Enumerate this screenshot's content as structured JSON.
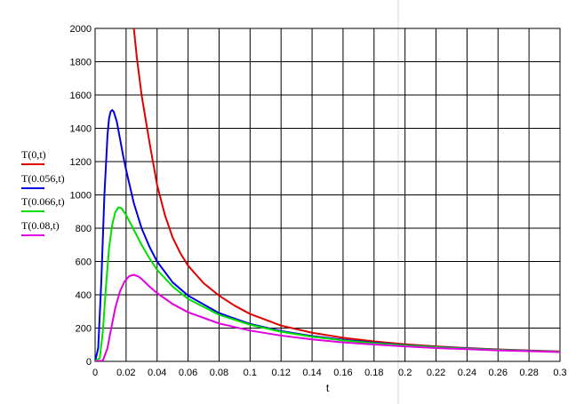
{
  "chart_data": {
    "type": "line",
    "xlabel": "t",
    "ylabel": "",
    "xlim": [
      0,
      0.3
    ],
    "ylim": [
      0,
      2000
    ],
    "xticks": [
      "0",
      "0.02",
      "0.04",
      "0.06",
      "0.08",
      "0.1",
      "0.12",
      "0.14",
      "0.16",
      "0.18",
      "0.2",
      "0.22",
      "0.24",
      "0.26",
      "0.28",
      "0.3"
    ],
    "yticks": [
      "0",
      "200",
      "400",
      "600",
      "800",
      "1000",
      "1200",
      "1400",
      "1600",
      "1800",
      "2000"
    ],
    "grid": true,
    "legend_position": "left",
    "series": [
      {
        "name": "T(0,t)",
        "color": "#e00000",
        "points": [
          [
            0.025,
            2000
          ],
          [
            0.027,
            1820
          ],
          [
            0.03,
            1600
          ],
          [
            0.035,
            1320
          ],
          [
            0.04,
            1060
          ],
          [
            0.045,
            880
          ],
          [
            0.05,
            745
          ],
          [
            0.055,
            650
          ],
          [
            0.06,
            575
          ],
          [
            0.07,
            470
          ],
          [
            0.08,
            395
          ],
          [
            0.09,
            335
          ],
          [
            0.1,
            285
          ],
          [
            0.12,
            215
          ],
          [
            0.14,
            172
          ],
          [
            0.16,
            142
          ],
          [
            0.18,
            120
          ],
          [
            0.2,
            103
          ],
          [
            0.22,
            90
          ],
          [
            0.24,
            80
          ],
          [
            0.26,
            72
          ],
          [
            0.28,
            65
          ],
          [
            0.3,
            60
          ]
        ]
      },
      {
        "name": "T(0.056,t)",
        "color": "#0000e0",
        "points": [
          [
            0,
            0
          ],
          [
            0.002,
            80
          ],
          [
            0.004,
            480
          ],
          [
            0.006,
            1000
          ],
          [
            0.008,
            1360
          ],
          [
            0.009,
            1460
          ],
          [
            0.01,
            1500
          ],
          [
            0.011,
            1510
          ],
          [
            0.012,
            1500
          ],
          [
            0.014,
            1440
          ],
          [
            0.016,
            1340
          ],
          [
            0.018,
            1240
          ],
          [
            0.02,
            1150
          ],
          [
            0.025,
            950
          ],
          [
            0.03,
            800
          ],
          [
            0.035,
            690
          ],
          [
            0.04,
            600
          ],
          [
            0.05,
            475
          ],
          [
            0.06,
            395
          ],
          [
            0.08,
            290
          ],
          [
            0.1,
            225
          ],
          [
            0.12,
            182
          ],
          [
            0.14,
            152
          ],
          [
            0.16,
            130
          ],
          [
            0.18,
            112
          ],
          [
            0.2,
            98
          ],
          [
            0.22,
            87
          ],
          [
            0.24,
            78
          ],
          [
            0.26,
            70
          ],
          [
            0.28,
            64
          ],
          [
            0.3,
            58
          ]
        ]
      },
      {
        "name": "T(0.066,t)",
        "color": "#00e000",
        "points": [
          [
            0,
            0
          ],
          [
            0.003,
            20
          ],
          [
            0.005,
            180
          ],
          [
            0.007,
            450
          ],
          [
            0.009,
            680
          ],
          [
            0.011,
            820
          ],
          [
            0.013,
            895
          ],
          [
            0.015,
            925
          ],
          [
            0.017,
            920
          ],
          [
            0.02,
            880
          ],
          [
            0.025,
            790
          ],
          [
            0.03,
            700
          ],
          [
            0.035,
            620
          ],
          [
            0.04,
            550
          ],
          [
            0.05,
            450
          ],
          [
            0.06,
            375
          ],
          [
            0.08,
            280
          ],
          [
            0.1,
            220
          ],
          [
            0.12,
            178
          ],
          [
            0.14,
            148
          ],
          [
            0.16,
            126
          ],
          [
            0.18,
            109
          ],
          [
            0.2,
            96
          ],
          [
            0.22,
            85
          ],
          [
            0.24,
            76
          ],
          [
            0.26,
            69
          ],
          [
            0.28,
            63
          ],
          [
            0.3,
            58
          ]
        ]
      },
      {
        "name": "T(0.08,t)",
        "color": "#e000e0",
        "points": [
          [
            0,
            0
          ],
          [
            0.005,
            5
          ],
          [
            0.008,
            80
          ],
          [
            0.01,
            180
          ],
          [
            0.013,
            320
          ],
          [
            0.016,
            420
          ],
          [
            0.019,
            480
          ],
          [
            0.022,
            512
          ],
          [
            0.025,
            520
          ],
          [
            0.028,
            510
          ],
          [
            0.03,
            495
          ],
          [
            0.035,
            450
          ],
          [
            0.04,
            410
          ],
          [
            0.05,
            345
          ],
          [
            0.06,
            295
          ],
          [
            0.08,
            228
          ],
          [
            0.1,
            185
          ],
          [
            0.12,
            155
          ],
          [
            0.14,
            132
          ],
          [
            0.16,
            114
          ],
          [
            0.18,
            101
          ],
          [
            0.2,
            90
          ],
          [
            0.22,
            80
          ],
          [
            0.24,
            73
          ],
          [
            0.26,
            66
          ],
          [
            0.28,
            61
          ],
          [
            0.3,
            56
          ]
        ]
      }
    ]
  }
}
